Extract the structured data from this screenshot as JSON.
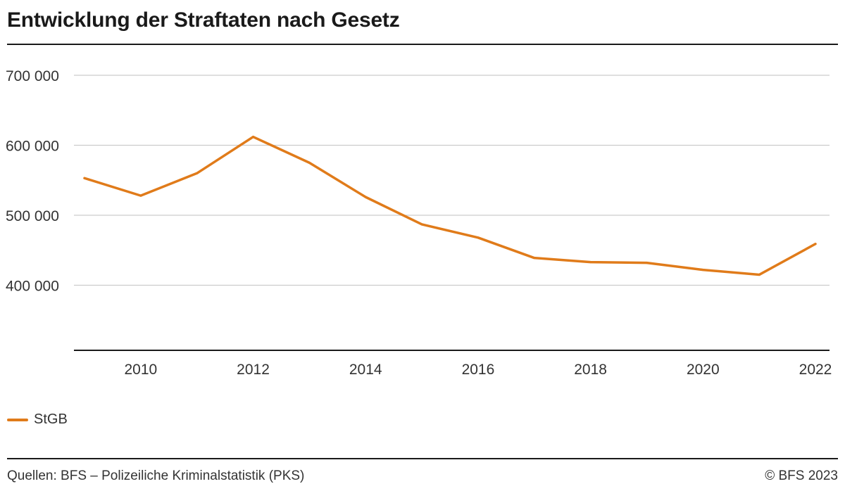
{
  "colors": {
    "series": "#e07b1a",
    "grid": "#cccccc",
    "axis": "#1a1a1a",
    "text": "#333333"
  },
  "title": "Entwicklung der Straftaten nach Gesetz",
  "footer": {
    "source": "Quellen: BFS – Polizeiliche Kriminalstatistik (PKS)",
    "copyright": "© BFS 2023"
  },
  "chart_data": {
    "type": "line",
    "title": "Entwicklung der Straftaten nach Gesetz",
    "xlabel": "",
    "ylabel": "",
    "x": [
      2009,
      2010,
      2011,
      2012,
      2013,
      2014,
      2015,
      2016,
      2017,
      2018,
      2019,
      2020,
      2021,
      2022
    ],
    "xlim": [
      2009,
      2022
    ],
    "ylim": [
      307000,
      700000
    ],
    "x_ticks": [
      2010,
      2012,
      2014,
      2016,
      2018,
      2020,
      2022
    ],
    "x_tick_labels": [
      "2010",
      "2012",
      "2014",
      "2016",
      "2018",
      "2020",
      "2022"
    ],
    "y_ticks": [
      400000,
      500000,
      600000,
      700000
    ],
    "y_tick_labels": [
      "400 000",
      "500 000",
      "600 000",
      "700 000"
    ],
    "grid": true,
    "legend_position": "bottom-left",
    "series": [
      {
        "name": "StGB",
        "values": [
          553000,
          528000,
          560000,
          612000,
          575000,
          526000,
          487000,
          468000,
          439000,
          433000,
          432000,
          422000,
          415000,
          459000
        ]
      }
    ]
  }
}
